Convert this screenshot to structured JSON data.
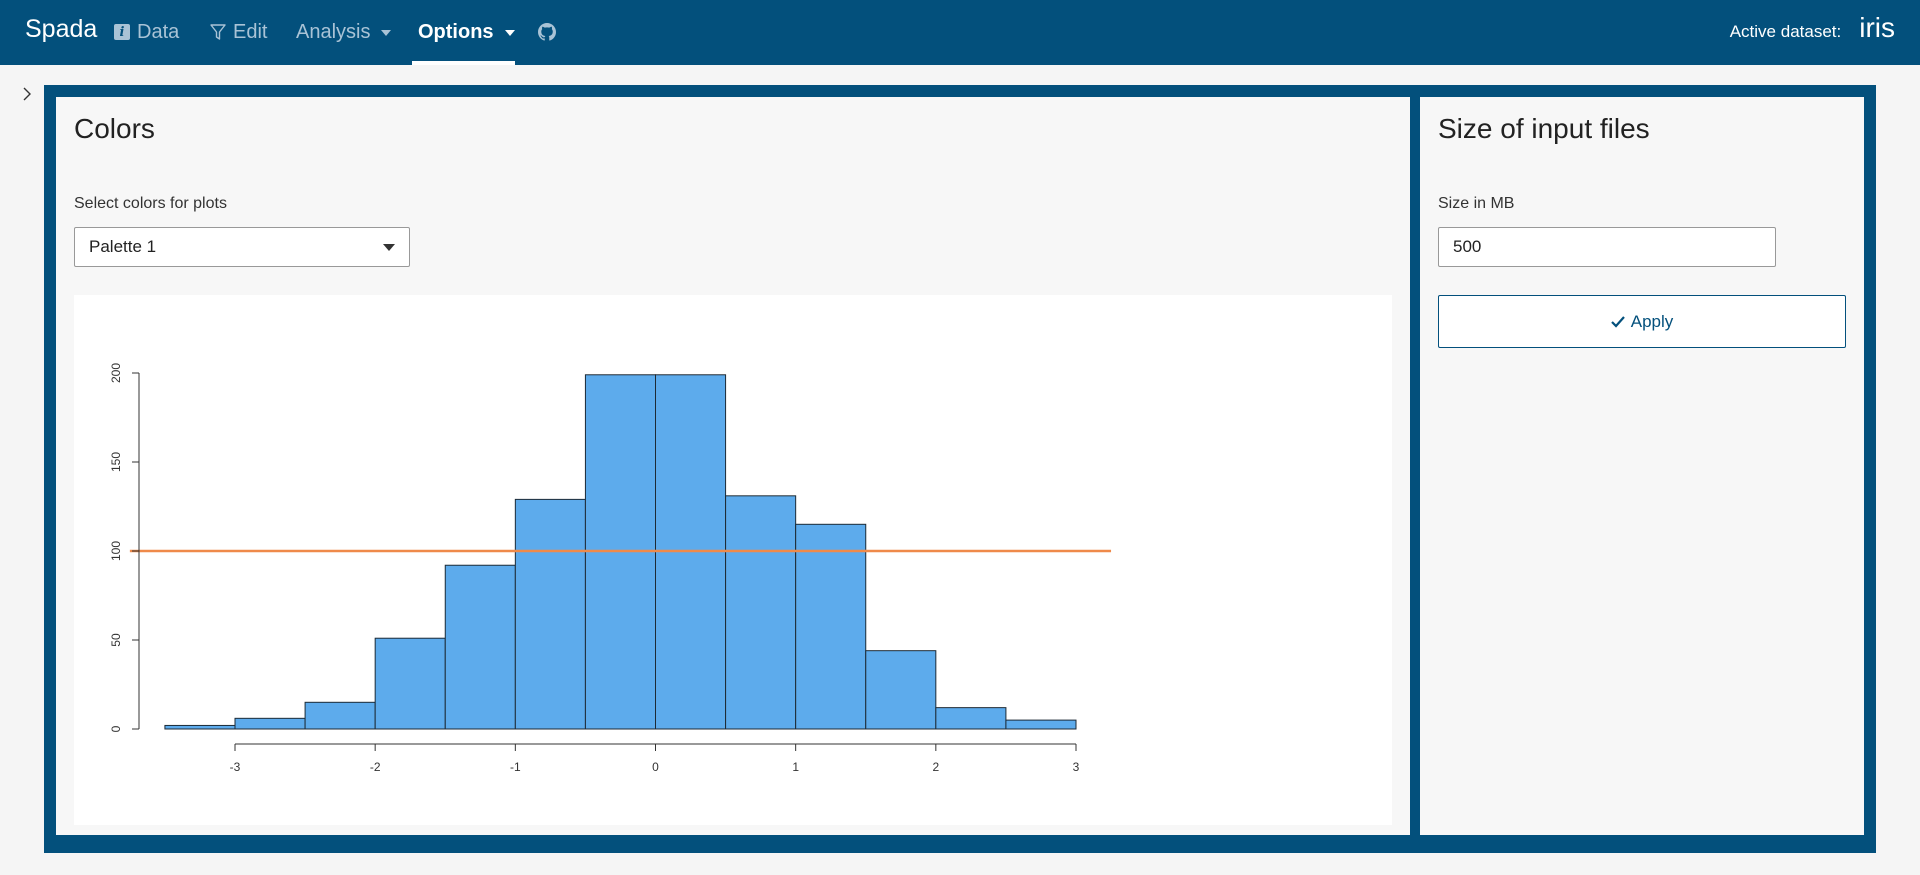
{
  "navbar": {
    "brand": "Spada",
    "items": [
      {
        "label": "Data",
        "icon": "info-icon"
      },
      {
        "label": "Edit",
        "icon": "filter-icon"
      },
      {
        "label": "Analysis"
      },
      {
        "label": "Options"
      }
    ],
    "github_icon": "github-icon",
    "active_dataset_label": "Active dataset:",
    "active_dataset_value": "iris"
  },
  "colors_card": {
    "title": "Colors",
    "select_label": "Select colors for plots",
    "select_value": "Palette 1"
  },
  "size_card": {
    "title": "Size of input files",
    "input_label": "Size in MB",
    "input_value": "500",
    "apply_label": "Apply"
  },
  "theme": {
    "primary": "#03507c",
    "bar_fill": "#5dabec",
    "reference_line": "#ef8a4a"
  },
  "chart_data": {
    "type": "bar",
    "subtype": "histogram",
    "bin_edges": [
      -3.5,
      -3,
      -2.5,
      -2,
      -1.5,
      -1,
      -0.5,
      0,
      0.5,
      1,
      1.5,
      2,
      2.5,
      3
    ],
    "values": [
      2,
      6,
      15,
      51,
      92,
      129,
      199,
      199,
      131,
      115,
      44,
      12,
      5
    ],
    "reference_line_y": 100,
    "x_ticks": [
      -3,
      -2,
      -1,
      0,
      1,
      2,
      3
    ],
    "y_ticks": [
      0,
      50,
      100,
      150,
      200
    ],
    "ylim": [
      0,
      200
    ],
    "title": "",
    "xlabel": "",
    "ylabel": "",
    "grid": false
  }
}
